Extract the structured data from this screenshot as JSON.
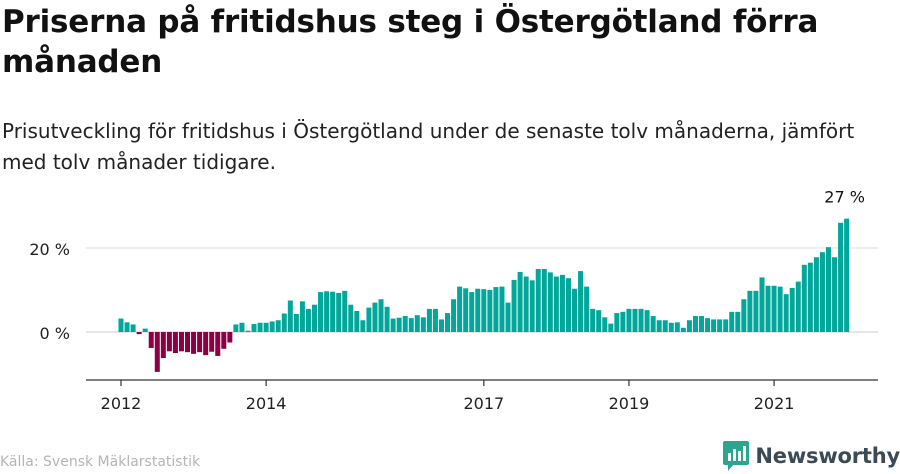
{
  "title": "Priserna på fritidshus steg i Östergötland förra månaden",
  "subtitle": "Prisutveckling för fritidshus i Östergötland under de senaste tolv månaderna, jämfört med tolv månader tidigare.",
  "source": "Källa: Svensk Mäklarstatistik",
  "brand": {
    "name": "Newsworthy",
    "logo_icon": "newsworthy-logo-icon"
  },
  "colors": {
    "positive": "#00a79a",
    "negative": "#8b0042",
    "grid": "#dddddd",
    "axis": "#333333"
  },
  "chart_data": {
    "type": "bar",
    "yunit": "%",
    "ylim": [
      -10,
      28
    ],
    "yticks": [
      {
        "value": 0,
        "label": "0 %"
      },
      {
        "value": 20,
        "label": "20 %"
      }
    ],
    "xticks": [
      {
        "year": 2012,
        "label": "2012"
      },
      {
        "year": 2014,
        "label": "2014"
      },
      {
        "year": 2017,
        "label": "2017"
      },
      {
        "year": 2019,
        "label": "2019"
      },
      {
        "year": 2021,
        "label": "2021"
      }
    ],
    "start": "2012-01",
    "grid": true,
    "last_value_label": "27 %",
    "values": [
      3.2,
      2.3,
      1.8,
      -0.5,
      0.8,
      -3.8,
      -9.5,
      -6.2,
      -4.6,
      -5,
      -4.6,
      -4.8,
      -5.2,
      -4.8,
      -5.5,
      -4.7,
      -5.7,
      -4,
      -2.5,
      1.8,
      2.2,
      0.3,
      1.9,
      2.2,
      2.2,
      2.5,
      2.8,
      4.4,
      7.5,
      4.3,
      7.3,
      5.5,
      6.5,
      9.5,
      9.7,
      9.6,
      9.3,
      9.8,
      6.5,
      5,
      2.8,
      5.8,
      7,
      7.8,
      6,
      3.2,
      3.4,
      3.8,
      3.3,
      4,
      3.5,
      5.5,
      5.5,
      3,
      4.5,
      7.8,
      10.8,
      10.4,
      9.5,
      10.3,
      10.2,
      10,
      10.7,
      10.8,
      7,
      12.4,
      14.3,
      13.2,
      12.3,
      15,
      15,
      14.2,
      13.2,
      13.6,
      12.8,
      10.3,
      14.5,
      10.8,
      5.5,
      5.2,
      3.5,
      2,
      4.5,
      4.8,
      5.5,
      5.5,
      5.5,
      5.2,
      3.8,
      2.8,
      2.8,
      2.2,
      2.3,
      1,
      2.8,
      3.8,
      3.8,
      3.3,
      3,
      3,
      3,
      4.8,
      4.8,
      7.8,
      9.8,
      9.8,
      13,
      11,
      11,
      10.8,
      9,
      10.5,
      12,
      16,
      16.5,
      17.8,
      19,
      20.2,
      17.8,
      26,
      27
    ]
  }
}
